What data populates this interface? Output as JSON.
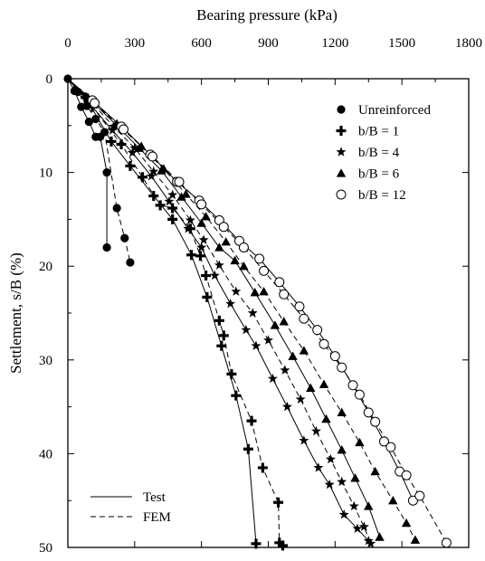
{
  "chart_data": {
    "type": "scatter",
    "xlabel": "Bearing pressure (kPa)",
    "ylabel": "Settlement, s/B (%)",
    "xlim": [
      0,
      1800
    ],
    "ylim": [
      0,
      50
    ],
    "x_axis_position": "top",
    "y_inverted": true,
    "grid": false,
    "legend_placement": "top-right",
    "x_ticks": [
      0,
      300,
      600,
      900,
      1200,
      1500,
      1800
    ],
    "y_ticks": [
      0,
      10,
      20,
      30,
      40,
      50
    ],
    "line_legend": [
      {
        "label": "Test",
        "dash": "solid"
      },
      {
        "label": "FEM",
        "dash": "dashed"
      }
    ],
    "series": [
      {
        "name": "Unreinforced",
        "marker": "circle-filled",
        "test": {
          "x": [
            0,
            30,
            60,
            95,
            125,
            145,
            175,
            175
          ],
          "y": [
            0,
            1.3,
            3.0,
            4.6,
            6.2,
            6.2,
            10.0,
            18.0
          ]
        },
        "fem": {
          "x": [
            0,
            45,
            85,
            125,
            165,
            220,
            255,
            280
          ],
          "y": [
            0,
            1.4,
            2.9,
            4.3,
            5.7,
            13.8,
            17.0,
            19.6
          ]
        }
      },
      {
        "name": "b/B = 1",
        "marker": "plus-bold",
        "test": {
          "x": [
            0,
            80,
            195,
            280,
            385,
            470,
            555,
            625,
            690,
            755,
            810,
            845
          ],
          "y": [
            0,
            2.0,
            6.7,
            9.3,
            12.5,
            15.0,
            18.8,
            23.3,
            28.5,
            33.8,
            39.5,
            49.6
          ]
        },
        "fem": {
          "x": [
            0,
            110,
            240,
            335,
            415,
            470,
            550,
            595,
            620,
            680,
            700,
            735,
            825,
            875,
            945,
            950,
            965
          ],
          "y": [
            0,
            3.0,
            7.0,
            10.5,
            13.5,
            13.8,
            16.0,
            18.9,
            21.0,
            25.8,
            27.4,
            31.5,
            36.5,
            41.5,
            45.2,
            49.5,
            49.8
          ]
        }
      },
      {
        "name": "b/B = 4",
        "marker": "star",
        "test": {
          "x": [
            0,
            85,
            200,
            290,
            375,
            455,
            540,
            600,
            660,
            730,
            800,
            845,
            920,
            985,
            1060,
            1125,
            1175,
            1240,
            1300,
            1350
          ],
          "y": [
            0,
            2.3,
            5.5,
            7.9,
            10.4,
            13.1,
            16.0,
            18.0,
            21.0,
            24.0,
            26.8,
            28.5,
            32.0,
            35.0,
            38.6,
            41.5,
            43.3,
            46.5,
            48.0,
            49.3
          ]
        },
        "fem": {
          "x": [
            0,
            90,
            205,
            300,
            385,
            470,
            550,
            610,
            680,
            755,
            830,
            900,
            975,
            1045,
            1115,
            1180,
            1230,
            1285,
            1330,
            1360
          ],
          "y": [
            0,
            2.1,
            5.1,
            7.4,
            9.9,
            12.4,
            15.1,
            17.2,
            19.9,
            22.7,
            25.0,
            27.9,
            31.1,
            34.2,
            37.6,
            40.6,
            43.0,
            45.6,
            47.8,
            49.6
          ]
        }
      },
      {
        "name": "b/B = 6",
        "marker": "triangle",
        "test": {
          "x": [
            0,
            90,
            220,
            320,
            420,
            510,
            600,
            680,
            750,
            840,
            930,
            1010,
            1090,
            1160,
            1230,
            1290,
            1350,
            1400
          ],
          "y": [
            0,
            2.0,
            5.0,
            7.4,
            9.8,
            12.6,
            15.4,
            18.0,
            19.4,
            22.8,
            26.3,
            29.6,
            33.0,
            36.3,
            39.6,
            42.6,
            45.6,
            48.9
          ]
        },
        "fem": {
          "x": [
            0,
            110,
            220,
            330,
            430,
            530,
            620,
            710,
            790,
            880,
            970,
            1060,
            1150,
            1230,
            1310,
            1380,
            1460,
            1520,
            1560
          ],
          "y": [
            0,
            2.4,
            4.8,
            7.2,
            9.6,
            12.3,
            14.7,
            17.4,
            20.0,
            22.7,
            25.9,
            29.0,
            32.6,
            35.6,
            38.8,
            41.9,
            45.0,
            47.4,
            49.2
          ]
        }
      },
      {
        "name": "b/B = 12",
        "marker": "circle-open",
        "test": {
          "x": [
            0,
            110,
            240,
            370,
            490,
            590,
            680,
            770,
            860,
            950,
            1040,
            1120,
            1200,
            1280,
            1350,
            1420,
            1490,
            1550
          ],
          "y": [
            0,
            2.3,
            5.1,
            8.1,
            11.0,
            13.0,
            15.1,
            17.3,
            19.2,
            21.7,
            24.3,
            26.8,
            29.6,
            32.7,
            35.6,
            38.7,
            41.9,
            45.0
          ]
        },
        "fem": {
          "x": [
            0,
            120,
            250,
            380,
            500,
            600,
            700,
            790,
            880,
            970,
            1060,
            1150,
            1230,
            1310,
            1380,
            1450,
            1520,
            1580,
            1700
          ],
          "y": [
            0,
            2.6,
            5.4,
            8.3,
            11.0,
            13.4,
            15.8,
            18.0,
            20.5,
            23.0,
            25.6,
            28.3,
            30.8,
            33.7,
            36.6,
            39.3,
            42.3,
            44.5,
            49.5
          ]
        }
      }
    ]
  }
}
